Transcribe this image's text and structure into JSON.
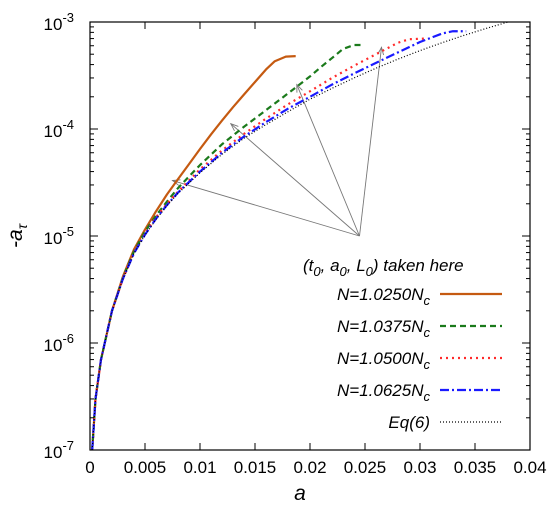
{
  "chart_data": {
    "type": "line",
    "xlabel": "a",
    "ylabel": "-a",
    "ylabel_sub": "τ",
    "xlim": [
      0,
      0.04
    ],
    "ylim": [
      1e-07,
      0.001
    ],
    "y_scale": "log",
    "x_ticks": [
      0,
      0.005,
      0.01,
      0.015,
      0.02,
      0.025,
      0.03,
      0.035,
      0.04
    ],
    "x_tick_labels": [
      "0",
      "0.005",
      "0.01",
      "0.015",
      "0.02",
      "0.025",
      "0.03",
      "0.035",
      "0.04"
    ],
    "y_ticks": [
      1e-07,
      1e-06,
      1e-05,
      0.0001,
      0.001
    ],
    "y_tick_labels": [
      {
        "base": "10",
        "exp": "-7"
      },
      {
        "base": "10",
        "exp": "-6"
      },
      {
        "base": "10",
        "exp": "-5"
      },
      {
        "base": "10",
        "exp": "-4"
      },
      {
        "base": "10",
        "exp": "-3"
      }
    ],
    "grid": false,
    "legend_position": "bottom-right",
    "annotation": {
      "text_parts": [
        {
          "t": "(t",
          "sub": "0"
        },
        {
          "t": ", a",
          "sub": "0"
        },
        {
          "t": ", L",
          "sub": "0"
        },
        {
          "t": ") taken here",
          "sub": ""
        }
      ],
      "hub": [
        0.0245,
        1e-05
      ],
      "targets": [
        [
          0.0075,
          3.3e-05
        ],
        [
          0.0128,
          0.000112
        ],
        [
          0.0188,
          0.00026
        ],
        [
          0.0265,
          0.00058
        ]
      ]
    },
    "series": [
      {
        "name_main": "N=1.0250N",
        "name_sub": "c",
        "color": "#c55a11",
        "dash": "",
        "points": [
          [
            0.0002,
            1e-07
          ],
          [
            0.0005,
            3e-07
          ],
          [
            0.001,
            7e-07
          ],
          [
            0.002,
            2e-06
          ],
          [
            0.003,
            4.2e-06
          ],
          [
            0.004,
            7.5e-06
          ],
          [
            0.005,
            1.15e-05
          ],
          [
            0.006,
            1.7e-05
          ],
          [
            0.007,
            2.45e-05
          ],
          [
            0.008,
            3.4e-05
          ],
          [
            0.009,
            4.7e-05
          ],
          [
            0.01,
            6.5e-05
          ],
          [
            0.011,
            8.9e-05
          ],
          [
            0.012,
            0.00012
          ],
          [
            0.013,
            0.00016
          ],
          [
            0.014,
            0.00021
          ],
          [
            0.015,
            0.000275
          ],
          [
            0.016,
            0.00036
          ],
          [
            0.0168,
            0.00043
          ],
          [
            0.0178,
            0.000475
          ],
          [
            0.0187,
            0.00048
          ]
        ]
      },
      {
        "name_main": "N=1.0375N",
        "name_sub": "c",
        "color": "#1b7a1b",
        "dash": "6,4",
        "points": [
          [
            0.0002,
            1e-07
          ],
          [
            0.0005,
            3e-07
          ],
          [
            0.001,
            7e-07
          ],
          [
            0.002,
            2e-06
          ],
          [
            0.003,
            4.1e-06
          ],
          [
            0.004,
            7.2e-06
          ],
          [
            0.005,
            1.1e-05
          ],
          [
            0.006,
            1.55e-05
          ],
          [
            0.007,
            2.1e-05
          ],
          [
            0.008,
            2.8e-05
          ],
          [
            0.009,
            3.6e-05
          ],
          [
            0.01,
            4.6e-05
          ],
          [
            0.012,
            7.2e-05
          ],
          [
            0.014,
            0.000105
          ],
          [
            0.016,
            0.00015
          ],
          [
            0.018,
            0.000215
          ],
          [
            0.02,
            0.00031
          ],
          [
            0.021,
            0.00038
          ],
          [
            0.022,
            0.00046
          ],
          [
            0.023,
            0.00056
          ],
          [
            0.024,
            0.00061
          ],
          [
            0.0248,
            0.00061
          ]
        ]
      },
      {
        "name_main": "N=1.0500N",
        "name_sub": "c",
        "color": "#ff2a2a",
        "dash": "2,4",
        "points": [
          [
            0.0002,
            1e-07
          ],
          [
            0.0005,
            3e-07
          ],
          [
            0.001,
            7e-07
          ],
          [
            0.002,
            2e-06
          ],
          [
            0.003,
            4e-06
          ],
          [
            0.004,
            7e-06
          ],
          [
            0.005,
            1.05e-05
          ],
          [
            0.006,
            1.5e-05
          ],
          [
            0.007,
            2e-05
          ],
          [
            0.008,
            2.6e-05
          ],
          [
            0.01,
            4.2e-05
          ],
          [
            0.012,
            6.3e-05
          ],
          [
            0.014,
            9e-05
          ],
          [
            0.016,
            0.000125
          ],
          [
            0.018,
            0.00017
          ],
          [
            0.02,
            0.000225
          ],
          [
            0.022,
            0.0003
          ],
          [
            0.024,
            0.00039
          ],
          [
            0.026,
            0.0005
          ],
          [
            0.028,
            0.00064
          ],
          [
            0.029,
            0.00069
          ],
          [
            0.0305,
            0.0007
          ]
        ]
      },
      {
        "name_main": "N=1.0625N",
        "name_sub": "c",
        "color": "#1a1aff",
        "dash": "9,3,2,3",
        "points": [
          [
            0.0002,
            1e-07
          ],
          [
            0.0005,
            3e-07
          ],
          [
            0.001,
            7e-07
          ],
          [
            0.002,
            2e-06
          ],
          [
            0.003,
            4e-06
          ],
          [
            0.004,
            6.9e-06
          ],
          [
            0.005,
            1.03e-05
          ],
          [
            0.006,
            1.45e-05
          ],
          [
            0.007,
            1.95e-05
          ],
          [
            0.008,
            2.55e-05
          ],
          [
            0.01,
            4e-05
          ],
          [
            0.012,
            6e-05
          ],
          [
            0.014,
            8.5e-05
          ],
          [
            0.016,
            0.000116
          ],
          [
            0.018,
            0.000155
          ],
          [
            0.02,
            0.0002
          ],
          [
            0.022,
            0.00026
          ],
          [
            0.024,
            0.00033
          ],
          [
            0.026,
            0.000415
          ],
          [
            0.028,
            0.00052
          ],
          [
            0.03,
            0.00065
          ],
          [
            0.032,
            0.00078
          ],
          [
            0.033,
            0.00082
          ],
          [
            0.0342,
            0.00082
          ]
        ]
      },
      {
        "name_main": "Eq(6)",
        "name_sub": "",
        "color": "#000000",
        "dash": "1,2",
        "points": [
          [
            0.0002,
            1e-07
          ],
          [
            0.0005,
            3e-07
          ],
          [
            0.001,
            7e-07
          ],
          [
            0.002,
            2e-06
          ],
          [
            0.003,
            4e-06
          ],
          [
            0.004,
            6.9e-06
          ],
          [
            0.005,
            1.02e-05
          ],
          [
            0.006,
            1.43e-05
          ],
          [
            0.007,
            1.92e-05
          ],
          [
            0.008,
            2.5e-05
          ],
          [
            0.01,
            3.9e-05
          ],
          [
            0.012,
            5.8e-05
          ],
          [
            0.014,
            8.2e-05
          ],
          [
            0.016,
            0.00011
          ],
          [
            0.018,
            0.000145
          ],
          [
            0.02,
            0.00019
          ],
          [
            0.022,
            0.00024
          ],
          [
            0.024,
            0.0003
          ],
          [
            0.026,
            0.00037
          ],
          [
            0.028,
            0.00045
          ],
          [
            0.03,
            0.00054
          ],
          [
            0.032,
            0.00064
          ],
          [
            0.034,
            0.00075
          ],
          [
            0.036,
            0.00087
          ],
          [
            0.038,
            0.001
          ],
          [
            0.04,
            0.00115
          ]
        ]
      }
    ]
  }
}
